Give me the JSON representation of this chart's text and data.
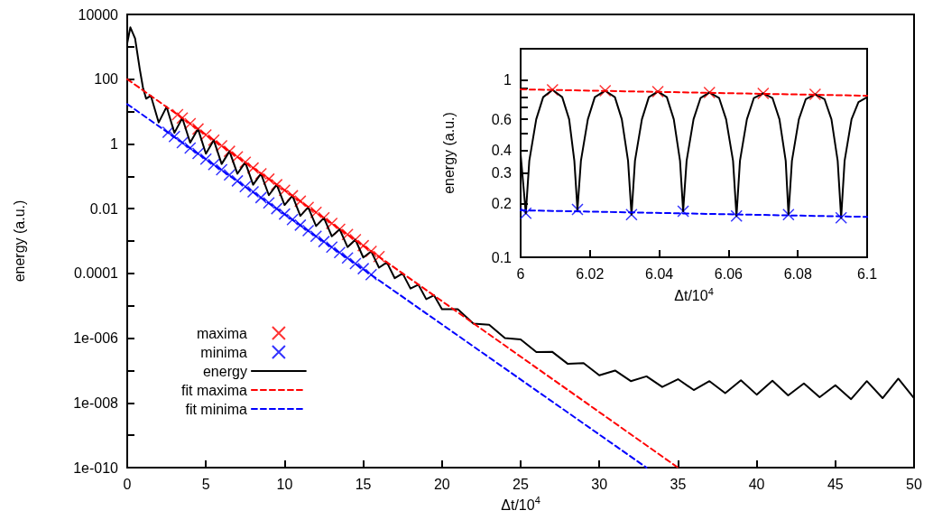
{
  "chart_data": [
    {
      "type": "line",
      "xlabel": "Δt/10$^{4}$",
      "ylabel": "energy (a.u.)",
      "log": true,
      "legend": "bottom left",
      "xlim": [
        0,
        50
      ],
      "xticks": [
        0,
        5,
        10,
        15,
        20,
        25,
        30,
        35,
        40,
        45,
        50
      ],
      "ylim": [
        1e-10,
        10000
      ],
      "yticks": [
        {
          "value": 10000,
          "label": "10000"
        },
        {
          "value": 1000,
          "label": null
        },
        {
          "value": 100,
          "label": "100"
        },
        {
          "value": 10,
          "label": null
        },
        {
          "value": 1,
          "label": "1"
        },
        {
          "value": 0.1,
          "label": null
        },
        {
          "value": 0.01,
          "label": "0.01"
        },
        {
          "value": 0.001,
          "label": null
        },
        {
          "value": 0.0001,
          "label": "0.0001"
        },
        {
          "value": 1e-05,
          "label": null
        },
        {
          "value": 1e-06,
          "label": "1e-006"
        },
        {
          "value": 1e-07,
          "label": null
        },
        {
          "value": 1e-08,
          "label": "1e-008"
        },
        {
          "value": 1e-09,
          "label": null
        },
        {
          "value": 1e-10,
          "label": "1e-010"
        }
      ],
      "series": [
        {
          "name": "maxima",
          "type": "scatter",
          "marker": "cross",
          "color": "#ff0000",
          "x": [
            3.2,
            3.5,
            4,
            4.5,
            5,
            5.5,
            6,
            6.5,
            7,
            7.5,
            8,
            8.5,
            9,
            9.5,
            10,
            10.5,
            11,
            11.5,
            12,
            12.5,
            13,
            13.5,
            14,
            14.5,
            15,
            15.5,
            16
          ],
          "values": [
            8.0,
            6.3,
            4.2,
            2.9,
            1.9,
            1.3,
            0.88,
            0.59,
            0.4,
            0.27,
            0.18,
            0.12,
            0.082,
            0.055,
            0.037,
            0.025,
            0.017,
            0.011,
            0.0077,
            0.0052,
            0.0035,
            0.0023,
            0.0016,
            0.0011,
            0.00072,
            0.00048,
            0.00033
          ]
        },
        {
          "name": "minima",
          "type": "scatter",
          "marker": "cross",
          "color": "#0000ff",
          "x": [
            2.6,
            3,
            3.5,
            4,
            4.5,
            5,
            5.5,
            6,
            6.5,
            7,
            7.5,
            8,
            8.5,
            9,
            9.5,
            10,
            10.5,
            11,
            11.5,
            12,
            12.5,
            13,
            13.5,
            14,
            14.5,
            15,
            15.5
          ],
          "values": [
            2.3,
            1.7,
            1.1,
            0.75,
            0.51,
            0.34,
            0.23,
            0.16,
            0.11,
            0.072,
            0.048,
            0.033,
            0.022,
            0.015,
            0.01,
            0.0068,
            0.0046,
            0.0031,
            0.0021,
            0.0014,
            0.00096,
            0.00065,
            0.00044,
            0.0003,
            0.0002,
            0.00014,
            9.1e-05
          ]
        },
        {
          "name": "energy",
          "type": "line",
          "marker": "none",
          "line_style": "solid",
          "color": "#000000",
          "x": [
            0,
            0.2,
            0.5,
            0.8,
            1.0,
            1.2,
            1.5,
            2,
            2.5,
            3,
            3.5,
            4,
            4.5,
            5,
            5.5,
            6,
            6.5,
            7,
            7.5,
            8,
            8.5,
            9,
            9.5,
            10,
            10.5,
            11,
            11.5,
            12,
            12.5,
            13,
            13.5,
            14,
            14.5,
            15,
            15.5,
            16,
            16.5,
            17,
            17.5,
            18,
            18.5,
            19,
            19.5,
            20,
            21,
            22,
            23,
            24,
            25,
            26,
            27,
            28,
            29,
            30,
            31,
            32,
            33,
            34,
            35,
            36,
            37,
            38,
            39,
            40,
            41,
            42,
            43,
            44,
            45,
            46,
            47,
            48,
            49,
            50
          ],
          "values": [
            1300,
            4000,
            1800,
            200,
            55,
            25,
            31,
            4.6,
            14,
            2.2,
            6.3,
            1.1,
            2.9,
            0.5,
            1.3,
            0.24,
            0.59,
            0.12,
            0.27,
            0.055,
            0.12,
            0.026,
            0.055,
            0.013,
            0.025,
            0.006,
            0.011,
            0.0029,
            0.0052,
            0.0014,
            0.0023,
            0.00065,
            0.0011,
            0.00031,
            0.00048,
            0.00015,
            0.00022,
            7.1e-05,
            0.0001,
            3.4e-05,
            4.5e-05,
            1.6e-05,
            2.1e-05,
            7.8e-06,
            7.9e-06,
            2.8e-06,
            2.6e-06,
            1e-06,
            9.1e-07,
            3.7e-07,
            3.8e-07,
            1.6e-07,
            1.7e-07,
            7.1e-08,
            1e-07,
            4.7e-08,
            6.6e-08,
            3.1e-08,
            5.4e-08,
            2.5e-08,
            4.7e-08,
            2e-08,
            5e-08,
            1.8e-08,
            4.8e-08,
            1.7e-08,
            4e-08,
            1.5e-08,
            3.5e-08,
            1.3e-08,
            4.7e-08,
            1.4e-08,
            5.6e-08,
            1.4e-08
          ]
        },
        {
          "name": "fit maxima",
          "type": "line",
          "marker": "none",
          "line_style": "dashed",
          "color": "#ff0000",
          "x": [
            0,
            35
          ],
          "values": [
            100,
            1e-10
          ]
        },
        {
          "name": "fit minima",
          "type": "line",
          "marker": "none",
          "line_style": "dashed",
          "color": "#0000ff",
          "x": [
            0,
            33
          ],
          "values": [
            17,
            1e-10
          ]
        }
      ]
    },
    {
      "type": "line",
      "xlabel": "Δt/10$^{4}$",
      "ylabel": "energy (a.u.)",
      "log": true,
      "xlim": [
        6,
        6.1
      ],
      "xticks": [
        6,
        6.02,
        6.04,
        6.06,
        6.08,
        6.1
      ],
      "ylim": [
        0.1,
        1.5
      ],
      "yticks": [
        0.1,
        0.2,
        0.3,
        0.4,
        {
          "value": 0.5,
          "label": null
        },
        0.6,
        {
          "value": 0.7,
          "label": null
        },
        {
          "value": 0.8,
          "label": null
        },
        {
          "value": 0.9,
          "label": null
        },
        1
      ],
      "series": [
        {
          "type": "scatter",
          "marker": "cross",
          "color": "#ff0000",
          "x": [
            6.0092,
            6.0244,
            6.0396,
            6.0545,
            6.07,
            6.085
          ],
          "values": [
            0.88,
            0.87,
            0.86,
            0.85,
            0.84,
            0.83
          ]
        },
        {
          "type": "scatter",
          "marker": "cross",
          "color": "#0000ff",
          "x": [
            6.0015,
            6.0164,
            6.032,
            6.0469,
            6.0623,
            6.0773,
            6.0925
          ],
          "values": [
            0.177,
            0.186,
            0.174,
            0.182,
            0.171,
            0.174,
            0.167
          ]
        },
        {
          "type": "line",
          "marker": "none",
          "line_style": "solid",
          "color": "#000000",
          "x": [
            6.0,
            6.0015,
            6.0025,
            6.0045,
            6.0065,
            6.0092,
            6.012,
            6.014,
            6.0155,
            6.0164,
            6.0174,
            6.0194,
            6.0214,
            6.0244,
            6.0272,
            6.0292,
            6.031,
            6.032,
            6.033,
            6.035,
            6.037,
            6.0396,
            6.0422,
            6.0442,
            6.046,
            6.0469,
            6.0479,
            6.0499,
            6.0519,
            6.0545,
            6.0573,
            6.0593,
            6.0613,
            6.0623,
            6.0633,
            6.0653,
            6.0673,
            6.07,
            6.0727,
            6.0747,
            6.0765,
            6.0773,
            6.0783,
            6.0803,
            6.0823,
            6.085,
            6.0877,
            6.0897,
            6.0915,
            6.0925,
            6.0935,
            6.0955,
            6.0975,
            6.1
          ],
          "values": [
            0.38,
            0.177,
            0.35,
            0.6,
            0.8,
            0.88,
            0.8,
            0.6,
            0.35,
            0.186,
            0.35,
            0.6,
            0.8,
            0.87,
            0.8,
            0.6,
            0.35,
            0.174,
            0.35,
            0.6,
            0.8,
            0.86,
            0.8,
            0.6,
            0.35,
            0.182,
            0.35,
            0.6,
            0.79,
            0.85,
            0.79,
            0.6,
            0.35,
            0.171,
            0.35,
            0.6,
            0.79,
            0.84,
            0.79,
            0.6,
            0.35,
            0.174,
            0.35,
            0.6,
            0.78,
            0.83,
            0.78,
            0.6,
            0.35,
            0.167,
            0.35,
            0.6,
            0.75,
            0.8
          ]
        },
        {
          "type": "line",
          "marker": "none",
          "line_style": "dashed",
          "color": "#ff0000",
          "x": [
            6.0,
            6.1
          ],
          "values": [
            0.885,
            0.815
          ]
        },
        {
          "type": "line",
          "marker": "none",
          "line_style": "dashed",
          "color": "#0000ff",
          "x": [
            6.0,
            6.1
          ],
          "values": [
            0.184,
            0.169
          ]
        }
      ]
    }
  ]
}
